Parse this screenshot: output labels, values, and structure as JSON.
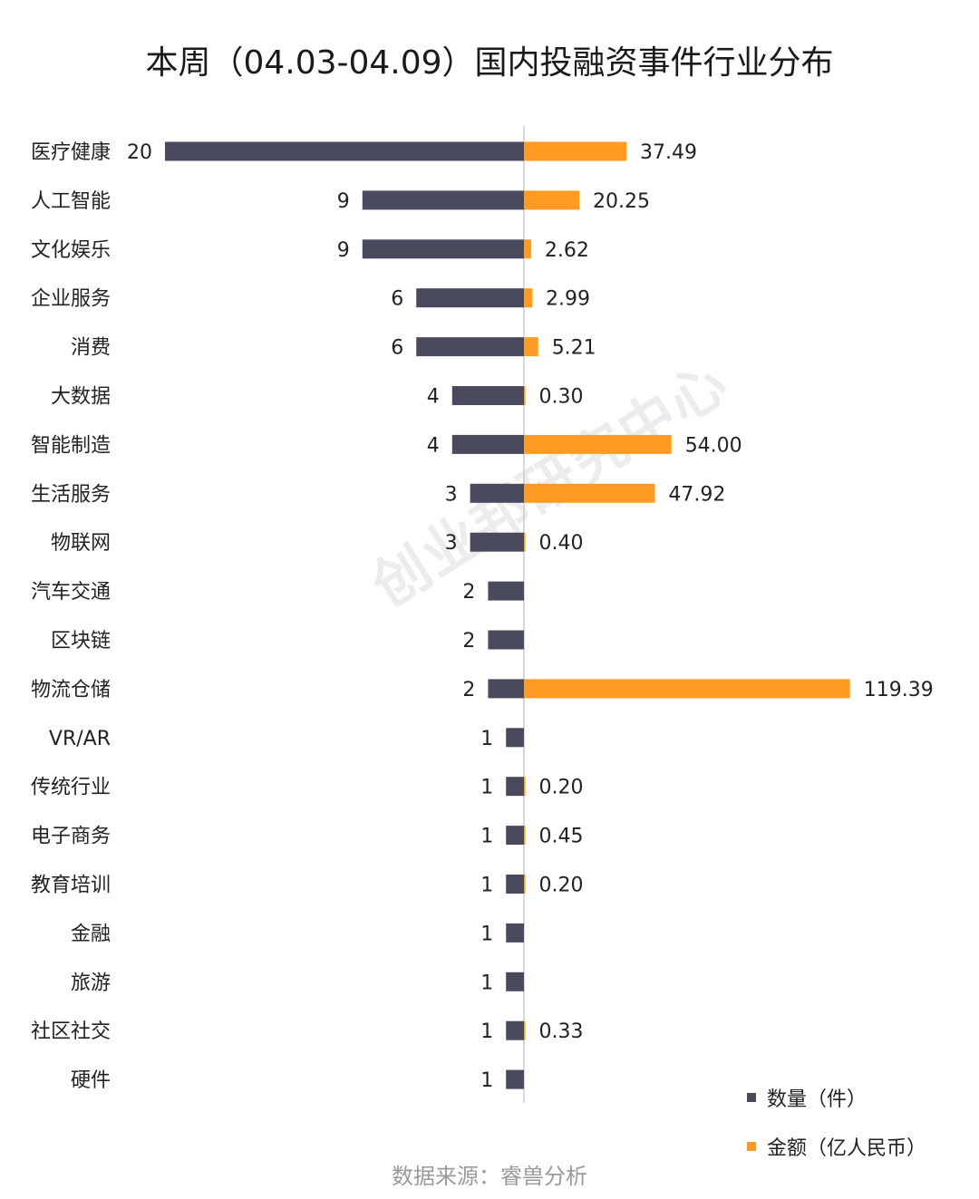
{
  "title": "本周（04.03-04.09）国内投融资事件行业分布",
  "source": "数据来源：睿兽分析",
  "watermark": "创业邦研究中心",
  "colors": {
    "count": "#4a4a5e",
    "amount": "#ff9a22",
    "axis": "#cccccc"
  },
  "chart_data": {
    "type": "bar",
    "orientation": "horizontal-diverging",
    "categories": [
      "医疗健康",
      "人工智能",
      "文化娱乐",
      "企业服务",
      "消费",
      "大数据",
      "智能制造",
      "生活服务",
      "物联网",
      "汽车交通",
      "区块链",
      "物流仓储",
      "VR/AR",
      "传统行业",
      "电子商务",
      "教育培训",
      "金融",
      "旅游",
      "社区社交",
      "硬件"
    ],
    "series": [
      {
        "name": "数量（件）",
        "values": [
          20,
          9,
          9,
          6,
          6,
          4,
          4,
          3,
          3,
          2,
          2,
          2,
          1,
          1,
          1,
          1,
          1,
          1,
          1,
          1
        ]
      },
      {
        "name": "金额（亿人民币）",
        "values": [
          "37.49",
          "20.25",
          "2.62",
          "2.99",
          "5.21",
          "0.30",
          "54.00",
          "47.92",
          "0.40",
          null,
          null,
          "119.39",
          null,
          "0.20",
          "0.45",
          "0.20",
          null,
          null,
          "0.33",
          null
        ]
      }
    ],
    "legend_position": "bottom-right",
    "grid": false
  }
}
